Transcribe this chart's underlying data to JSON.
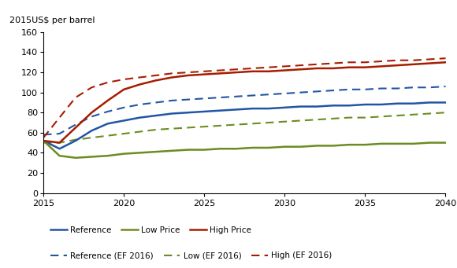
{
  "title": "2015US$ per barrel",
  "ylim": [
    0,
    160
  ],
  "yticks": [
    0,
    20,
    40,
    60,
    80,
    100,
    120,
    140,
    160
  ],
  "xlim": [
    2015,
    2040
  ],
  "xticks": [
    2015,
    2020,
    2025,
    2030,
    2035,
    2040
  ],
  "series": {
    "reference": {
      "x": [
        2015,
        2016,
        2017,
        2018,
        2019,
        2020,
        2021,
        2022,
        2023,
        2024,
        2025,
        2026,
        2027,
        2028,
        2029,
        2030,
        2031,
        2032,
        2033,
        2034,
        2035,
        2036,
        2037,
        2038,
        2039,
        2040
      ],
      "y": [
        52,
        44,
        52,
        62,
        69,
        72,
        75,
        77,
        79,
        80,
        81,
        82,
        83,
        84,
        84,
        85,
        86,
        86,
        87,
        87,
        88,
        88,
        89,
        89,
        90,
        90
      ],
      "color": "#2255a4",
      "linestyle": "solid",
      "linewidth": 1.8,
      "label": "Reference"
    },
    "low_price": {
      "x": [
        2015,
        2016,
        2017,
        2018,
        2019,
        2020,
        2021,
        2022,
        2023,
        2024,
        2025,
        2026,
        2027,
        2028,
        2029,
        2030,
        2031,
        2032,
        2033,
        2034,
        2035,
        2036,
        2037,
        2038,
        2039,
        2040
      ],
      "y": [
        52,
        37,
        35,
        36,
        37,
        39,
        40,
        41,
        42,
        43,
        43,
        44,
        44,
        45,
        45,
        46,
        46,
        47,
        47,
        48,
        48,
        49,
        49,
        49,
        50,
        50
      ],
      "color": "#6b8c21",
      "linestyle": "solid",
      "linewidth": 1.8,
      "label": "Low Price"
    },
    "high_price": {
      "x": [
        2015,
        2016,
        2017,
        2018,
        2019,
        2020,
        2021,
        2022,
        2023,
        2024,
        2025,
        2026,
        2027,
        2028,
        2029,
        2030,
        2031,
        2032,
        2033,
        2034,
        2035,
        2036,
        2037,
        2038,
        2039,
        2040
      ],
      "y": [
        52,
        50,
        65,
        80,
        92,
        103,
        108,
        112,
        115,
        117,
        118,
        119,
        120,
        121,
        121,
        122,
        123,
        124,
        124,
        125,
        125,
        126,
        127,
        128,
        129,
        130
      ],
      "color": "#a61c00",
      "linestyle": "solid",
      "linewidth": 1.8,
      "label": "High Price"
    },
    "reference_ef2016": {
      "x": [
        2015,
        2016,
        2017,
        2018,
        2019,
        2020,
        2021,
        2022,
        2023,
        2024,
        2025,
        2026,
        2027,
        2028,
        2029,
        2030,
        2031,
        2032,
        2033,
        2034,
        2035,
        2036,
        2037,
        2038,
        2039,
        2040
      ],
      "y": [
        58,
        59,
        68,
        76,
        81,
        85,
        88,
        90,
        92,
        93,
        94,
        95,
        96,
        97,
        98,
        99,
        100,
        101,
        102,
        103,
        103,
        104,
        104,
        105,
        105,
        106
      ],
      "color": "#2255a4",
      "linestyle": "dashed",
      "linewidth": 1.5,
      "label": "Reference (EF 2016)"
    },
    "low_ef2016": {
      "x": [
        2015,
        2016,
        2017,
        2018,
        2019,
        2020,
        2021,
        2022,
        2023,
        2024,
        2025,
        2026,
        2027,
        2028,
        2029,
        2030,
        2031,
        2032,
        2033,
        2034,
        2035,
        2036,
        2037,
        2038,
        2039,
        2040
      ],
      "y": [
        50,
        50,
        53,
        55,
        57,
        59,
        61,
        63,
        64,
        65,
        66,
        67,
        68,
        69,
        70,
        71,
        72,
        73,
        74,
        75,
        75,
        76,
        77,
        78,
        79,
        80
      ],
      "color": "#6b8c21",
      "linestyle": "dashed",
      "linewidth": 1.5,
      "label": "Low (EF 2016)"
    },
    "high_ef2016": {
      "x": [
        2015,
        2016,
        2017,
        2018,
        2019,
        2020,
        2021,
        2022,
        2023,
        2024,
        2025,
        2026,
        2027,
        2028,
        2029,
        2030,
        2031,
        2032,
        2033,
        2034,
        2035,
        2036,
        2037,
        2038,
        2039,
        2040
      ],
      "y": [
        55,
        75,
        95,
        105,
        110,
        113,
        115,
        117,
        119,
        120,
        121,
        122,
        123,
        124,
        125,
        126,
        127,
        128,
        129,
        130,
        130,
        131,
        132,
        132,
        133,
        134
      ],
      "color": "#a61c00",
      "linestyle": "dashed",
      "linewidth": 1.5,
      "label": "High (EF 2016)"
    }
  },
  "background_color": "#ffffff"
}
